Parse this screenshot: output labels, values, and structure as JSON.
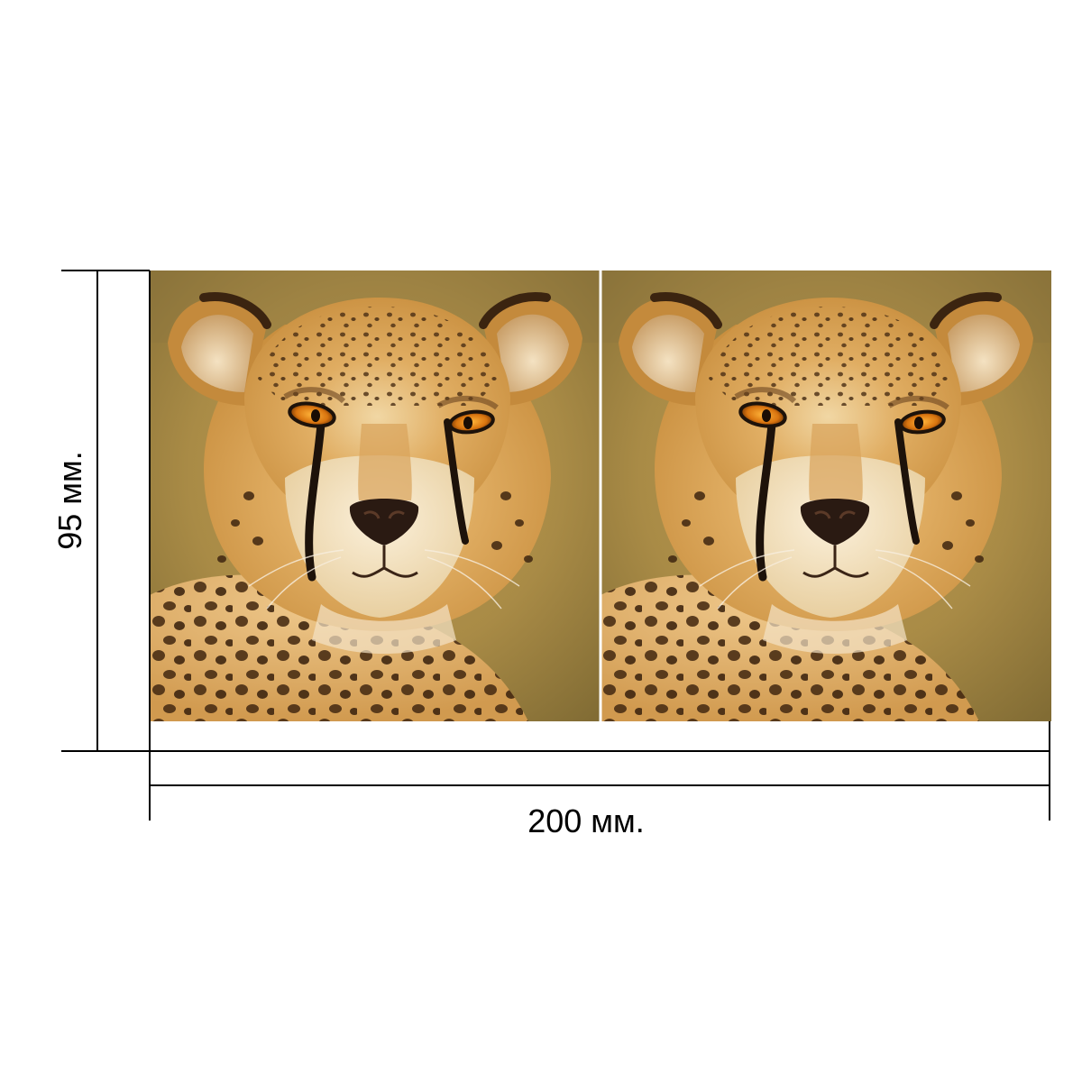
{
  "dimensions": {
    "width_label": "200 мм.",
    "height_label": "95 мм."
  },
  "panels": [
    {
      "name": "left-panel",
      "subject": "cheetah-portrait"
    },
    {
      "name": "right-panel",
      "subject": "cheetah-portrait"
    }
  ],
  "colors": {
    "background": "#ffffff",
    "lines": "#000000",
    "fur": "#d9a253",
    "bokeh": "#a88a45"
  }
}
